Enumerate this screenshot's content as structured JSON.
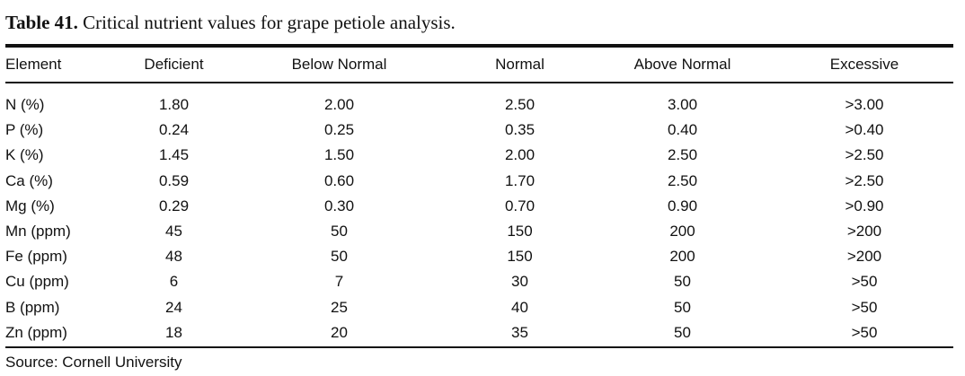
{
  "caption": {
    "label": "Table 41.",
    "text": "Critical nutrient values for grape petiole analysis."
  },
  "table": {
    "headers": [
      "Element",
      "Deficient",
      "Below Normal",
      "Normal",
      "Above Normal",
      "Excessive"
    ],
    "rows": [
      [
        "N (%)",
        "1.80",
        "2.00",
        "2.50",
        "3.00",
        ">3.00"
      ],
      [
        "P (%)",
        "0.24",
        "0.25",
        "0.35",
        "0.40",
        ">0.40"
      ],
      [
        "K (%)",
        "1.45",
        "1.50",
        "2.00",
        "2.50",
        ">2.50"
      ],
      [
        "Ca (%)",
        "0.59",
        "0.60",
        "1.70",
        "2.50",
        ">2.50"
      ],
      [
        "Mg (%)",
        "0.29",
        "0.30",
        "0.70",
        "0.90",
        ">0.90"
      ],
      [
        "Mn (ppm)",
        "45",
        "50",
        "150",
        "200",
        ">200"
      ],
      [
        "Fe (ppm)",
        "48",
        "50",
        "150",
        "200",
        ">200"
      ],
      [
        "Cu (ppm)",
        "6",
        "7",
        "30",
        "50",
        ">50"
      ],
      [
        "B (ppm)",
        "24",
        "25",
        "40",
        "50",
        ">50"
      ],
      [
        "Zn (ppm)",
        "18",
        "20",
        "35",
        "50",
        ">50"
      ]
    ]
  },
  "source": "Source: Cornell University"
}
